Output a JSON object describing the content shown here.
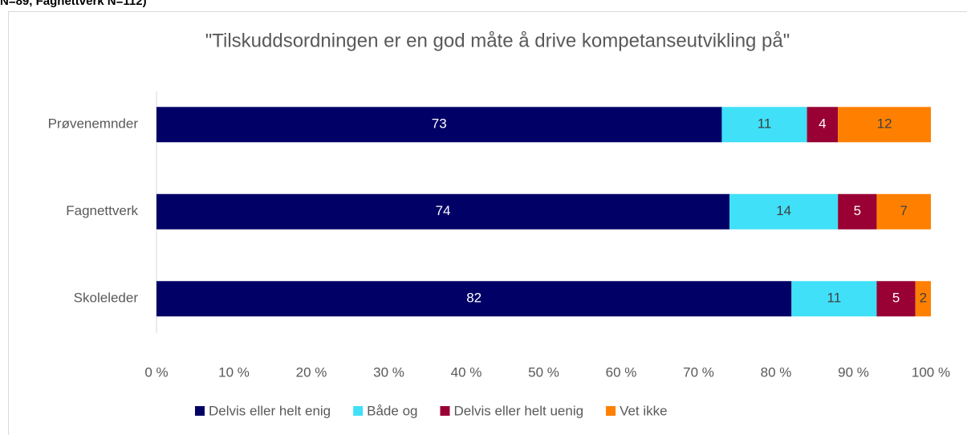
{
  "note_text": "N=89, Fagnettverk N=112)",
  "chart_data": {
    "type": "stacked_barh",
    "title": "\"Tilskuddsordningen er en god måte å drive kompetanseutvikling på\"",
    "categories": [
      "Prøvenemnder",
      "Fagnettverk",
      "Skoleleder"
    ],
    "series": [
      {
        "name": "Delvis eller helt enig",
        "color": "#000066",
        "values": [
          73,
          74,
          82
        ]
      },
      {
        "name": "Både og",
        "color": "#3fe0f8",
        "values": [
          11,
          14,
          11
        ]
      },
      {
        "name": "Delvis eller helt uenig",
        "color": "#990033",
        "values": [
          4,
          5,
          5
        ]
      },
      {
        "name": "Vet ikke",
        "color": "#ff8000",
        "values": [
          12,
          7,
          2
        ]
      }
    ],
    "xlim": [
      0,
      100
    ],
    "xticks": [
      {
        "value": 0,
        "label": "0 %"
      },
      {
        "value": 10,
        "label": "10 %"
      },
      {
        "value": 20,
        "label": "20 %"
      },
      {
        "value": 30,
        "label": "30 %"
      },
      {
        "value": 40,
        "label": "40 %"
      },
      {
        "value": 50,
        "label": "50 %"
      },
      {
        "value": 60,
        "label": "60 %"
      },
      {
        "value": 70,
        "label": "70 %"
      },
      {
        "value": 80,
        "label": "80 %"
      },
      {
        "value": 90,
        "label": "90 %"
      },
      {
        "value": 100,
        "label": "100 %"
      }
    ],
    "legend": "bottom"
  }
}
